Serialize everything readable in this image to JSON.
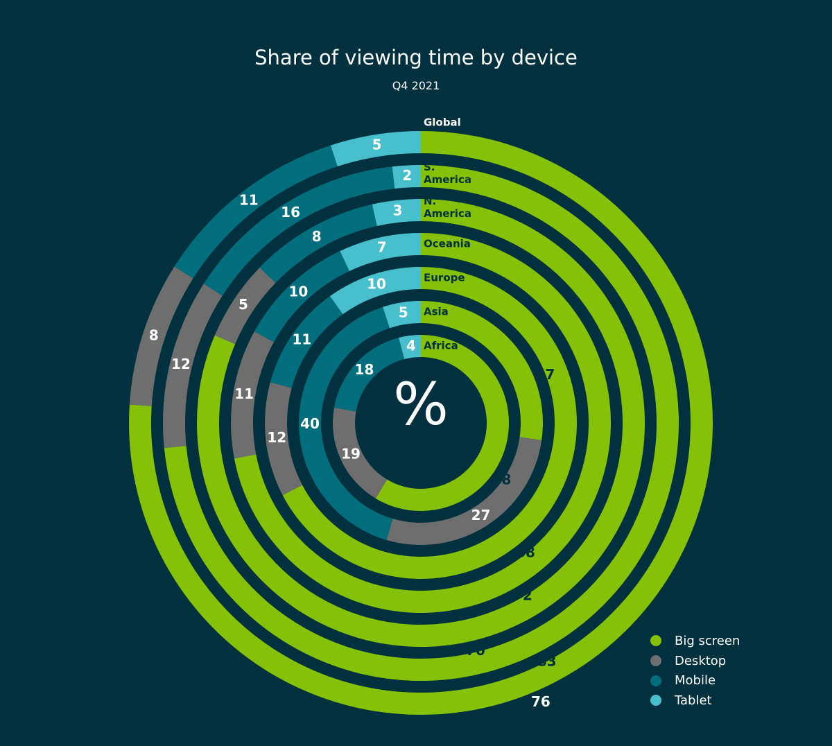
{
  "chart_data": {
    "type": "radial-stacked-bar",
    "title": "Share of viewing time by device",
    "subtitle": "Q4 2021",
    "center_label": "%",
    "series_names": [
      "Big screen",
      "Desktop",
      "Mobile",
      "Tablet"
    ],
    "colors": {
      "Big screen": "#85c106",
      "Desktop": "#6e6e6e",
      "Mobile": "#006e7d",
      "Tablet": "#48bfcc"
    },
    "rings": [
      {
        "region": "Africa",
        "values": {
          "Big screen": 58,
          "Desktop": 19,
          "Mobile": 18,
          "Tablet": 4
        }
      },
      {
        "region": "Asia",
        "values": {
          "Big screen": 27,
          "Desktop": 27,
          "Mobile": 40,
          "Tablet": 5
        }
      },
      {
        "region": "Europe",
        "values": {
          "Big screen": 68,
          "Desktop": 12,
          "Mobile": 11,
          "Tablet": 10
        }
      },
      {
        "region": "Oceania",
        "values": {
          "Big screen": 72,
          "Desktop": 11,
          "Mobile": 10,
          "Tablet": 7
        }
      },
      {
        "region": "N. America",
        "values": {
          "Big screen": 70,
          "Desktop": 5,
          "Mobile": 8,
          "Tablet": 3
        }
      },
      {
        "region": "S. America",
        "values": {
          "Big screen": 83,
          "Desktop": 12,
          "Mobile": 16,
          "Tablet": 2
        }
      },
      {
        "region": "Global",
        "values": {
          "Big screen": 76,
          "Desktop": 8,
          "Mobile": 11,
          "Tablet": 5
        }
      }
    ]
  },
  "legend": [
    {
      "label": "Big screen",
      "color": "#85c106"
    },
    {
      "label": "Desktop",
      "color": "#6e6e6e"
    },
    {
      "label": "Mobile",
      "color": "#006e7d"
    },
    {
      "label": "Tablet",
      "color": "#48bfcc"
    }
  ]
}
